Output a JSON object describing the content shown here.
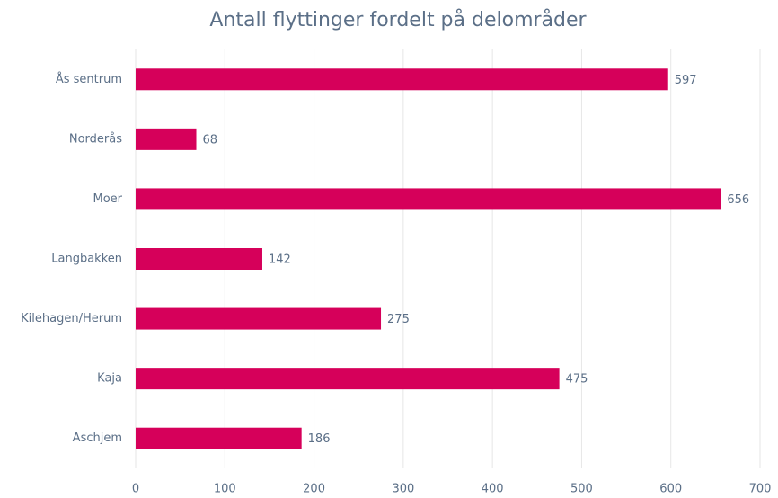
{
  "chart_data": {
    "type": "bar",
    "orientation": "horizontal",
    "title": "Antall flyttinger fordelt på delområder",
    "categories": [
      "Ås sentrum",
      "Norderås",
      "Moer",
      "Langbakken",
      "Kilehagen/Herum",
      "Kaja",
      "Aschjem"
    ],
    "values": [
      597,
      68,
      656,
      142,
      275,
      475,
      186
    ],
    "color": "#d6005a",
    "xlim": [
      0,
      700
    ],
    "xticks": [
      0,
      100,
      200,
      300,
      400,
      500,
      600,
      700
    ],
    "grid": true,
    "data_labels": true
  }
}
